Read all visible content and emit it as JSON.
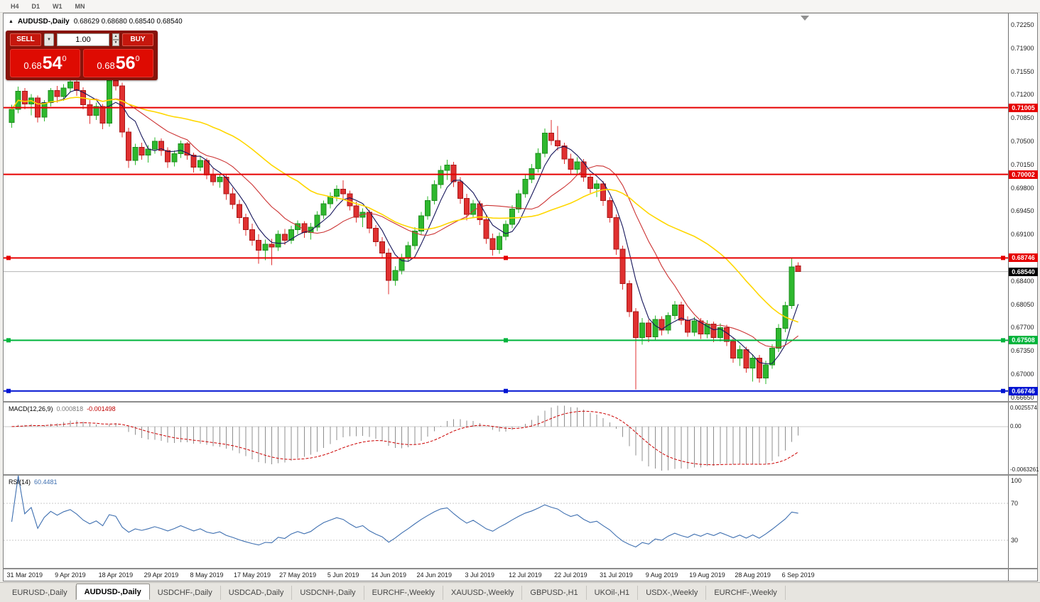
{
  "toolbar": {
    "timeframes": [
      "H4",
      "D1",
      "W1",
      "MN"
    ]
  },
  "title": {
    "toggle_icon": "▲",
    "symbol": "AUDUSD-,Daily",
    "ohlc": "0.68629 0.68680 0.68540 0.68540"
  },
  "trade_panel": {
    "sell_label": "SELL",
    "buy_label": "BUY",
    "volume": "1.00",
    "dropdown_icon": "▼",
    "spin_up_icon": "▲",
    "spin_down_icon": "▼",
    "sell_price": {
      "base": "0.68",
      "big": "54",
      "sup": "0"
    },
    "buy_price": {
      "base": "0.68",
      "big": "56",
      "sup": "0"
    }
  },
  "price_axis": {
    "labels": [
      "0.72250",
      "0.71900",
      "0.71550",
      "0.71200",
      "0.70850",
      "0.70500",
      "0.70150",
      "0.69800",
      "0.69450",
      "0.69100",
      "0.68750",
      "0.68400",
      "0.68050",
      "0.67700",
      "0.67350",
      "0.67000",
      "0.66650"
    ],
    "current_price_label": "0.68540"
  },
  "date_axis": {
    "labels": [
      "31 Mar 2019",
      "9 Apr 2019",
      "18 Apr 2019",
      "29 Apr 2019",
      "8 May 2019",
      "17 May 2019",
      "27 May 2019",
      "5 Jun 2019",
      "14 Jun 2019",
      "24 Jun 2019",
      "3 Jul 2019",
      "12 Jul 2019",
      "22 Jul 2019",
      "31 Jul 2019",
      "9 Aug 2019",
      "19 Aug 2019",
      "28 Aug 2019",
      "6 Sep 2019"
    ]
  },
  "indicators": {
    "macd": {
      "name": "MACD(12,26,9)",
      "value_main": "0.000818",
      "value_signal": "-0.001498",
      "axis_top": "0.0025574",
      "axis_zero": "0.00",
      "axis_bottom": "-0.0063261",
      "fast": 12,
      "slow": 26,
      "signal": 9
    },
    "rsi": {
      "name": "RSI(14)",
      "value": "60.4481",
      "period": 14,
      "axis_labels": [
        "100",
        "70",
        "30"
      ],
      "levels": [
        70,
        30
      ]
    }
  },
  "tabs": [
    {
      "label": "EURUSD-,Daily",
      "active": false
    },
    {
      "label": "AUDUSD-,Daily",
      "active": true
    },
    {
      "label": "USDCHF-,Daily",
      "active": false
    },
    {
      "label": "USDCAD-,Daily",
      "active": false
    },
    {
      "label": "USDCNH-,Daily",
      "active": false
    },
    {
      "label": "EURCHF-,Weekly",
      "active": false
    },
    {
      "label": "XAUUSD-,Weekly",
      "active": false
    },
    {
      "label": "GBPUSD-,H1",
      "active": false
    },
    {
      "label": "UKOil-,H1",
      "active": false
    },
    {
      "label": "USDX-,Weekly",
      "active": false
    },
    {
      "label": "EURCHF-,Weekly",
      "active": false
    }
  ],
  "chart_data": {
    "type": "candlestick",
    "symbol": "AUDUSD",
    "timeframe": "Daily",
    "title": "AUDUSD-,Daily",
    "ohlc_today": [
      0.68629,
      0.6868,
      0.6854,
      0.6854
    ],
    "current_bid": 0.6854,
    "current_ask": 0.6856,
    "ylim": [
      0.66594,
      0.7242
    ],
    "date_tick_start_index": 2,
    "date_tick_step": 7,
    "price_lines": [
      {
        "price": 0.71005,
        "label": "0.71005",
        "color": "#e60000",
        "handles": false
      },
      {
        "price": 0.70002,
        "label": "0.70002",
        "color": "#e60000",
        "handles": false
      },
      {
        "price": 0.68746,
        "label": "0.68746",
        "color": "#e60000",
        "handles": true
      },
      {
        "price": 0.67508,
        "label": "0.67508",
        "color": "#00b43c",
        "handles": true
      },
      {
        "price": 0.66746,
        "label": "0.66746",
        "color": "#0014d2",
        "handles": true
      }
    ],
    "moving_averages": [
      {
        "period": 5,
        "color": "#14145a"
      },
      {
        "period": 13,
        "color": "#cc3333"
      },
      {
        "period": 30,
        "color": "#ffd700"
      }
    ],
    "colors": {
      "bull": "#2eb82e",
      "bull_border": "#1f8c1f",
      "bear": "#e03030",
      "bear_border": "#a81818",
      "macd_hist": "#8f8f8f",
      "macd_signal": "#cc0000",
      "macd_zero": "#c8c8c8",
      "rsi_line": "#3e6fb0",
      "rsi_level": "#c8c8c8",
      "bid_line": "#b4b4b4",
      "shift_marker": "#909090"
    },
    "candles": [
      [
        0.7078,
        0.7105,
        0.707,
        0.7098
      ],
      [
        0.7098,
        0.7132,
        0.7092,
        0.7125
      ],
      [
        0.7125,
        0.713,
        0.7098,
        0.7106
      ],
      [
        0.7106,
        0.7121,
        0.7089,
        0.7115
      ],
      [
        0.7115,
        0.7119,
        0.7078,
        0.7086
      ],
      [
        0.7086,
        0.7112,
        0.708,
        0.7108
      ],
      [
        0.7108,
        0.713,
        0.7102,
        0.7126
      ],
      [
        0.7126,
        0.7133,
        0.7108,
        0.7117
      ],
      [
        0.7117,
        0.7136,
        0.7111,
        0.713
      ],
      [
        0.713,
        0.7146,
        0.7124,
        0.7139
      ],
      [
        0.7139,
        0.7144,
        0.7118,
        0.7126
      ],
      [
        0.7126,
        0.7131,
        0.7098,
        0.7105
      ],
      [
        0.7105,
        0.7112,
        0.7076,
        0.7089
      ],
      [
        0.7089,
        0.7108,
        0.7082,
        0.7102
      ],
      [
        0.7102,
        0.7106,
        0.7068,
        0.7077
      ],
      [
        0.7077,
        0.7148,
        0.7072,
        0.7141
      ],
      [
        0.7141,
        0.7152,
        0.7126,
        0.7133
      ],
      [
        0.7133,
        0.7138,
        0.7056,
        0.7064
      ],
      [
        0.7064,
        0.707,
        0.701,
        0.7021
      ],
      [
        0.7021,
        0.7046,
        0.7014,
        0.7041
      ],
      [
        0.7041,
        0.7048,
        0.7022,
        0.7029
      ],
      [
        0.7029,
        0.7044,
        0.7018,
        0.7038
      ],
      [
        0.7038,
        0.7056,
        0.7031,
        0.705
      ],
      [
        0.705,
        0.7054,
        0.7028,
        0.7036
      ],
      [
        0.7036,
        0.7041,
        0.701,
        0.7019
      ],
      [
        0.7019,
        0.7036,
        0.7012,
        0.7031
      ],
      [
        0.7031,
        0.7051,
        0.7025,
        0.7046
      ],
      [
        0.7046,
        0.7049,
        0.7022,
        0.7029
      ],
      [
        0.7029,
        0.7033,
        0.7003,
        0.7011
      ],
      [
        0.7011,
        0.7027,
        0.7005,
        0.7021
      ],
      [
        0.7021,
        0.7025,
        0.6993,
        0.6999
      ],
      [
        0.6999,
        0.7009,
        0.6983,
        0.6989
      ],
      [
        0.6989,
        0.7001,
        0.698,
        0.6996
      ],
      [
        0.6996,
        0.6999,
        0.6962,
        0.6971
      ],
      [
        0.6971,
        0.698,
        0.6948,
        0.6955
      ],
      [
        0.6955,
        0.6962,
        0.6926,
        0.6935
      ],
      [
        0.6935,
        0.6941,
        0.6908,
        0.6917
      ],
      [
        0.6917,
        0.6926,
        0.6893,
        0.6901
      ],
      [
        0.6901,
        0.691,
        0.6866,
        0.6886
      ],
      [
        0.6886,
        0.6902,
        0.6871,
        0.6895
      ],
      [
        0.6895,
        0.6903,
        0.6864,
        0.6891
      ],
      [
        0.6891,
        0.6916,
        0.6885,
        0.691
      ],
      [
        0.691,
        0.6918,
        0.6894,
        0.6901
      ],
      [
        0.6901,
        0.6923,
        0.6896,
        0.6917
      ],
      [
        0.6917,
        0.6931,
        0.691,
        0.6926
      ],
      [
        0.6926,
        0.693,
        0.6905,
        0.6913
      ],
      [
        0.6913,
        0.6927,
        0.6902,
        0.6921
      ],
      [
        0.6921,
        0.6945,
        0.6915,
        0.6939
      ],
      [
        0.6939,
        0.6961,
        0.6933,
        0.6956
      ],
      [
        0.6956,
        0.6973,
        0.6949,
        0.6967
      ],
      [
        0.6967,
        0.6984,
        0.696,
        0.6978
      ],
      [
        0.6978,
        0.6991,
        0.6963,
        0.6971
      ],
      [
        0.6971,
        0.6976,
        0.6946,
        0.6953
      ],
      [
        0.6953,
        0.6959,
        0.6928,
        0.6936
      ],
      [
        0.6936,
        0.6949,
        0.6921,
        0.6943
      ],
      [
        0.6943,
        0.6947,
        0.6912,
        0.6919
      ],
      [
        0.6919,
        0.6924,
        0.6892,
        0.6899
      ],
      [
        0.6899,
        0.6906,
        0.6874,
        0.6882
      ],
      [
        0.6882,
        0.6889,
        0.682,
        0.6841
      ],
      [
        0.6841,
        0.6862,
        0.6833,
        0.6856
      ],
      [
        0.6856,
        0.6881,
        0.685,
        0.6875
      ],
      [
        0.6875,
        0.6899,
        0.6869,
        0.6893
      ],
      [
        0.6893,
        0.6921,
        0.6887,
        0.6915
      ],
      [
        0.6915,
        0.6944,
        0.6909,
        0.6938
      ],
      [
        0.6938,
        0.6967,
        0.6932,
        0.6961
      ],
      [
        0.6961,
        0.6991,
        0.6955,
        0.6985
      ],
      [
        0.6985,
        0.7013,
        0.6979,
        0.7006
      ],
      [
        0.7006,
        0.7022,
        0.6992,
        0.7014
      ],
      [
        0.7014,
        0.7019,
        0.6981,
        0.6989
      ],
      [
        0.6989,
        0.6996,
        0.6956,
        0.6964
      ],
      [
        0.6964,
        0.6971,
        0.6931,
        0.694
      ],
      [
        0.694,
        0.6962,
        0.6934,
        0.6956
      ],
      [
        0.6956,
        0.6961,
        0.6924,
        0.6932
      ],
      [
        0.6932,
        0.6938,
        0.6896,
        0.6904
      ],
      [
        0.6904,
        0.6911,
        0.6878,
        0.6887
      ],
      [
        0.6887,
        0.6913,
        0.6881,
        0.6907
      ],
      [
        0.6907,
        0.6931,
        0.6901,
        0.6925
      ],
      [
        0.6925,
        0.6954,
        0.6919,
        0.6948
      ],
      [
        0.6948,
        0.6977,
        0.6942,
        0.6971
      ],
      [
        0.6971,
        0.6999,
        0.6965,
        0.6993
      ],
      [
        0.6993,
        0.7016,
        0.6987,
        0.7009
      ],
      [
        0.7009,
        0.7039,
        0.7003,
        0.7032
      ],
      [
        0.7032,
        0.7069,
        0.7026,
        0.7062
      ],
      [
        0.7062,
        0.7082,
        0.7044,
        0.7051
      ],
      [
        0.7051,
        0.7073,
        0.7036,
        0.7043
      ],
      [
        0.7043,
        0.7048,
        0.7016,
        0.7023
      ],
      [
        0.7023,
        0.7031,
        0.7001,
        0.7008
      ],
      [
        0.7008,
        0.7026,
        0.7,
        0.7019
      ],
      [
        0.7019,
        0.7023,
        0.6989,
        0.6996
      ],
      [
        0.6996,
        0.7001,
        0.6972,
        0.6979
      ],
      [
        0.6979,
        0.6992,
        0.6966,
        0.6986
      ],
      [
        0.6986,
        0.699,
        0.6953,
        0.6961
      ],
      [
        0.6961,
        0.6966,
        0.6928,
        0.6935
      ],
      [
        0.6935,
        0.694,
        0.6879,
        0.6888
      ],
      [
        0.6888,
        0.6893,
        0.6827,
        0.6836
      ],
      [
        0.6836,
        0.6841,
        0.6786,
        0.6794
      ],
      [
        0.6794,
        0.6799,
        0.6677,
        0.6755
      ],
      [
        0.6755,
        0.6784,
        0.6744,
        0.6777
      ],
      [
        0.6777,
        0.6782,
        0.6748,
        0.6756
      ],
      [
        0.6756,
        0.6788,
        0.675,
        0.6782
      ],
      [
        0.6782,
        0.6787,
        0.6758,
        0.6766
      ],
      [
        0.6766,
        0.6793,
        0.676,
        0.6788
      ],
      [
        0.6788,
        0.681,
        0.6782,
        0.6804
      ],
      [
        0.6804,
        0.6809,
        0.6774,
        0.6781
      ],
      [
        0.6781,
        0.6787,
        0.6756,
        0.6763
      ],
      [
        0.6763,
        0.6786,
        0.6757,
        0.678
      ],
      [
        0.678,
        0.6784,
        0.6753,
        0.676
      ],
      [
        0.676,
        0.6781,
        0.6754,
        0.6775
      ],
      [
        0.6775,
        0.6779,
        0.6748,
        0.6755
      ],
      [
        0.6755,
        0.6776,
        0.6749,
        0.677
      ],
      [
        0.677,
        0.6774,
        0.6742,
        0.6749
      ],
      [
        0.6749,
        0.6754,
        0.6717,
        0.6724
      ],
      [
        0.6724,
        0.6743,
        0.6712,
        0.6737
      ],
      [
        0.6737,
        0.6741,
        0.6702,
        0.6709
      ],
      [
        0.6709,
        0.673,
        0.6689,
        0.6724
      ],
      [
        0.6724,
        0.6729,
        0.6687,
        0.6694
      ],
      [
        0.6694,
        0.672,
        0.6685,
        0.6714
      ],
      [
        0.6714,
        0.6745,
        0.6708,
        0.6739
      ],
      [
        0.6739,
        0.6775,
        0.6733,
        0.6769
      ],
      [
        0.6769,
        0.6809,
        0.6763,
        0.6803
      ],
      [
        0.6803,
        0.6875,
        0.6798,
        0.6861
      ],
      [
        0.68629,
        0.6868,
        0.6854,
        0.6854
      ]
    ]
  }
}
